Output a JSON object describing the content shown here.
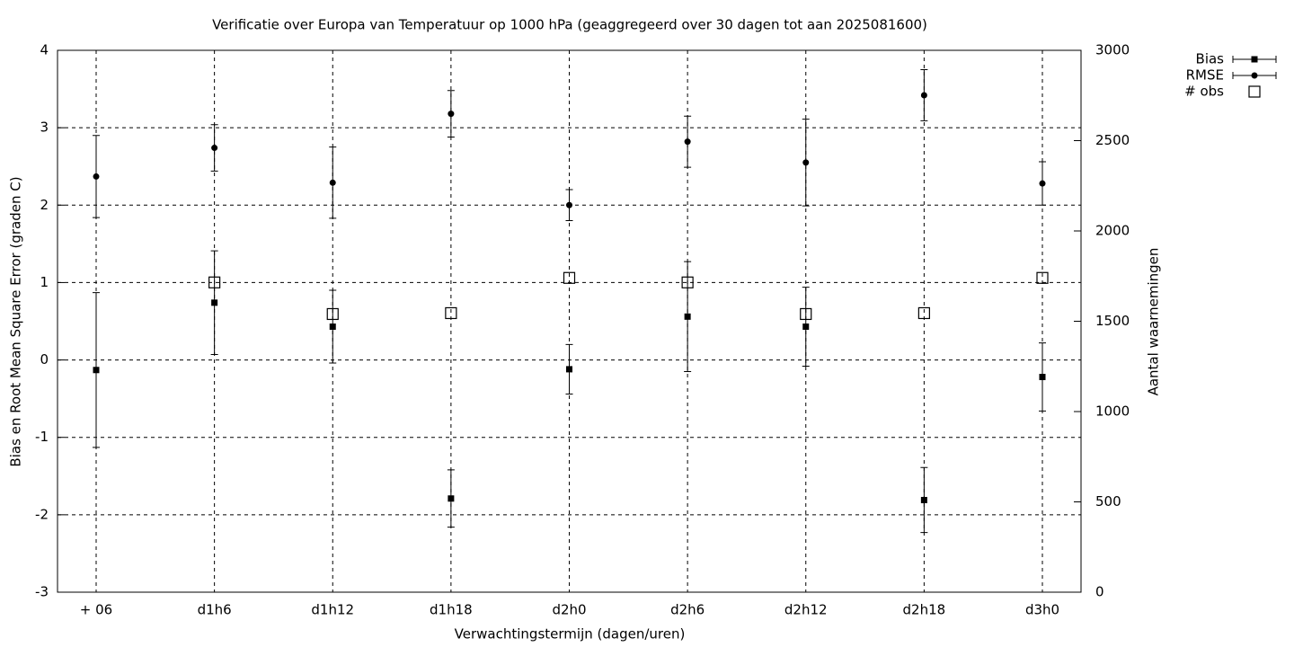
{
  "chart_data": {
    "type": "errorbar",
    "title": "Verificatie over Europa van Temperatuur op 1000 hPa (geaggregeerd over 30 dagen tot aan 2025081600)",
    "x_label": "Verwachtingstermijn (dagen/uren)",
    "y_label": "Bias en Root Mean Square Error (graden C)",
    "y2_label": "Aantal waarnemingen",
    "categories": [
      "+ 06",
      "d1h6",
      "d1h12",
      "d1h18",
      "d2h0",
      "d2h6",
      "d2h12",
      "d2h18",
      "d3h0"
    ],
    "series": [
      {
        "name": "Bias",
        "color": "#000000",
        "marker": "square",
        "values": [
          -0.13,
          0.74,
          0.43,
          -1.79,
          -0.12,
          0.56,
          0.43,
          -1.81,
          -0.22
        ],
        "errors": [
          1.0,
          0.67,
          0.47,
          0.37,
          0.32,
          0.71,
          0.51,
          0.42,
          0.44
        ]
      },
      {
        "name": "RMSE",
        "color": "#000000",
        "marker": "circle",
        "values": [
          2.37,
          2.74,
          2.29,
          3.18,
          2.0,
          2.82,
          2.55,
          3.42,
          2.28
        ],
        "errors": [
          0.53,
          0.3,
          0.46,
          0.3,
          0.2,
          0.33,
          0.56,
          0.33,
          0.28
        ]
      },
      {
        "name": "# obs",
        "color": "#000000",
        "marker": "open-square",
        "axis": "y2",
        "values": [
          null,
          1715,
          1540,
          1545,
          1740,
          1715,
          1540,
          1545,
          1740
        ]
      }
    ],
    "ylim": [
      -3,
      4
    ],
    "yticks": [
      -3,
      -2,
      -1,
      0,
      1,
      2,
      3,
      4
    ],
    "y2lim": [
      0,
      3000
    ],
    "y2ticks": [
      0,
      500,
      1000,
      1500,
      2000,
      2500,
      3000
    ],
    "grid": true,
    "legend": "top-right-outside"
  }
}
